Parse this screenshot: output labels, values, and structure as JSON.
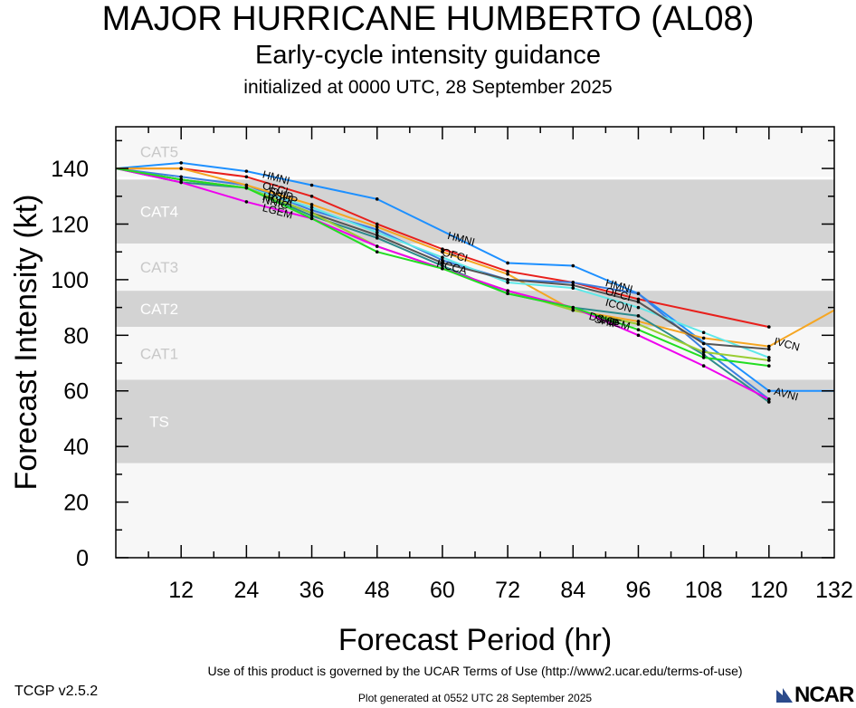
{
  "header": {
    "title": "MAJOR HURRICANE HUMBERTO (AL08)",
    "subtitle": "Early-cycle intensity guidance",
    "init_line": "initialized at 0000 UTC, 28 September 2025"
  },
  "footer": {
    "terms": "Use of this product is governed by the UCAR Terms of Use (http://www2.ucar.edu/terms-of-use)",
    "version": "TCGP v2.5.2",
    "generated": "Plot generated at 0552 UTC   28 September 2025",
    "logo_text": "NCAR"
  },
  "chart_data": {
    "type": "line",
    "title": "MAJOR HURRICANE HUMBERTO (AL08)",
    "xlabel": "Forecast Period (hr)",
    "ylabel": "Forecast Intensity (kt)",
    "xlim": [
      0,
      132
    ],
    "ylim": [
      0,
      155
    ],
    "x_ticks": [
      12,
      24,
      36,
      48,
      60,
      72,
      84,
      96,
      108,
      120,
      132
    ],
    "y_ticks": [
      0,
      20,
      40,
      60,
      80,
      100,
      120,
      140
    ],
    "bands": [
      {
        "label": "CAT5",
        "from": 137,
        "to": 155,
        "color": "#f7f7f7"
      },
      {
        "label": "CAT4",
        "from": 113,
        "to": 136,
        "color": "#d3d3d3"
      },
      {
        "label": "CAT3",
        "from": 96,
        "to": 113,
        "color": "#f7f7f7"
      },
      {
        "label": "CAT2",
        "from": 83,
        "to": 96,
        "color": "#d3d3d3"
      },
      {
        "label": "CAT1",
        "from": 64,
        "to": 83,
        "color": "#f7f7f7"
      },
      {
        "label": "TS",
        "from": 34,
        "to": 64,
        "color": "#d3d3d3"
      },
      {
        "label": "",
        "from": 0,
        "to": 34,
        "color": "#f7f7f7"
      }
    ],
    "series": [
      {
        "name": "HMNI",
        "color": "#1e90ff",
        "x": [
          0,
          12,
          24,
          36,
          48,
          72,
          84,
          96,
          120,
          132
        ],
        "y": [
          140,
          142,
          139,
          134,
          129,
          106,
          105,
          95,
          60,
          60
        ],
        "label_at": [
          [
            27,
            138
          ],
          [
            61,
            116
          ],
          [
            90,
            99
          ]
        ]
      },
      {
        "name": "OFCI",
        "color": "#e8201c",
        "x": [
          0,
          12,
          24,
          36,
          48,
          60,
          72,
          84,
          96,
          120
        ],
        "y": [
          140,
          140,
          137,
          130,
          120,
          111,
          103,
          99,
          93,
          83
        ],
        "label_at": [
          [
            27,
            134
          ],
          [
            60,
            110
          ],
          [
            90,
            96
          ]
        ]
      },
      {
        "name": "AVNI",
        "color": "#3d7fe0",
        "x": [
          0,
          12,
          24,
          36,
          48,
          60,
          72,
          84,
          96,
          108,
          120
        ],
        "y": [
          140,
          137,
          134,
          125,
          118,
          107,
          100,
          99,
          95,
          75,
          57
        ],
        "label_at": [
          [
            121,
            60
          ]
        ]
      },
      {
        "name": "IVCN",
        "color": "#f5a623",
        "x": [
          0,
          12,
          24,
          36,
          48,
          60,
          72,
          84,
          96,
          108,
          120,
          132
        ],
        "y": [
          140,
          140,
          134,
          127,
          119,
          110,
          102,
          89,
          85,
          79,
          76,
          89
        ],
        "label_at": [
          [
            121,
            78
          ]
        ]
      },
      {
        "name": "ICON",
        "color": "#5fe8e8",
        "x": [
          0,
          12,
          24,
          36,
          48,
          60,
          72,
          84,
          96,
          108,
          120
        ],
        "y": [
          140,
          136,
          133,
          126,
          117,
          108,
          99,
          97,
          90,
          81,
          72
        ],
        "label_at": [
          [
            90,
            92
          ]
        ]
      },
      {
        "name": "HCCA",
        "color": "#555555",
        "x": [
          0,
          12,
          24,
          36,
          48,
          60,
          72,
          84,
          96,
          108,
          120
        ],
        "y": [
          140,
          136,
          133,
          124,
          116,
          106,
          100,
          98,
          92,
          77,
          75
        ],
        "label_at": [
          [
            27,
            130
          ],
          [
            59,
            106
          ]
        ]
      },
      {
        "name": "DSHP",
        "color": "#2e8b8b",
        "x": [
          0,
          12,
          24,
          36,
          48,
          60,
          72,
          84,
          96,
          108,
          120
        ],
        "y": [
          140,
          135,
          133,
          123,
          115,
          105,
          95,
          90,
          87,
          73,
          56
        ],
        "label_at": [
          [
            28,
            131
          ],
          [
            87,
            87
          ]
        ]
      },
      {
        "name": "SHIP",
        "color": "#9acd32",
        "x": [
          0,
          12,
          24,
          36,
          48,
          60,
          72,
          84,
          96,
          108,
          120
        ],
        "y": [
          140,
          136,
          133,
          124,
          112,
          104,
          96,
          89,
          84,
          74,
          71
        ],
        "label_at": [
          [
            28,
            132
          ],
          [
            88,
            86
          ]
        ]
      },
      {
        "name": "LGEM",
        "color": "#ee00ee",
        "x": [
          0,
          12,
          24,
          36,
          48,
          60,
          72,
          84,
          96,
          108,
          120
        ],
        "y": [
          140,
          135,
          128,
          122,
          112,
          104,
          96,
          90,
          80,
          69,
          57
        ],
        "label_at": [
          [
            27,
            126
          ],
          [
            89,
            86
          ]
        ]
      },
      {
        "name": "NNIC",
        "color": "#22dd22",
        "x": [
          0,
          12,
          24,
          36,
          48,
          60,
          72,
          84,
          96,
          108,
          120
        ],
        "y": [
          140,
          136,
          133,
          122,
          110,
          104,
          95,
          90,
          82,
          72,
          69
        ],
        "label_at": [
          [
            27,
            129
          ]
        ]
      }
    ]
  }
}
